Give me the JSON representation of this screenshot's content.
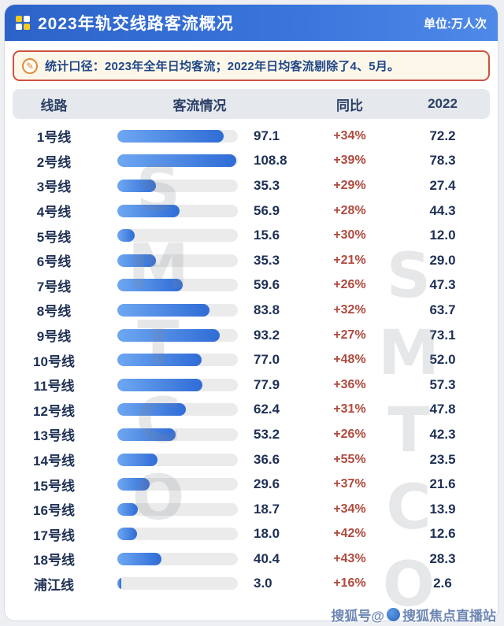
{
  "header": {
    "title": "2023年轨交线路客流概况",
    "unit": "单位:万人次"
  },
  "note": {
    "text": "统计口径：2023年全年日均客流；2022年日均客流剔除了4、5月。"
  },
  "table": {
    "columns": [
      "线路",
      "客流情况",
      "同比",
      "2022"
    ]
  },
  "chart_data": {
    "type": "bar",
    "title": "2023年轨交线路客流概况",
    "unit": "万人次",
    "categories": [
      "1号线",
      "2号线",
      "3号线",
      "4号线",
      "5号线",
      "6号线",
      "7号线",
      "8号线",
      "9号线",
      "10号线",
      "11号线",
      "12号线",
      "13号线",
      "14号线",
      "15号线",
      "16号线",
      "17号线",
      "18号线",
      "浦江线"
    ],
    "series": [
      {
        "name": "2023年日均客流",
        "values": [
          97.1,
          108.8,
          35.3,
          56.9,
          15.6,
          35.3,
          59.6,
          83.8,
          93.2,
          77.0,
          77.9,
          62.4,
          53.2,
          36.6,
          29.6,
          18.7,
          18.0,
          40.4,
          3.0
        ]
      },
      {
        "name": "同比",
        "values": [
          "+34%",
          "+39%",
          "+29%",
          "+28%",
          "+30%",
          "+21%",
          "+26%",
          "+32%",
          "+27%",
          "+48%",
          "+36%",
          "+31%",
          "+26%",
          "+55%",
          "+37%",
          "+34%",
          "+42%",
          "+43%",
          "+16%"
        ]
      },
      {
        "name": "2022",
        "values": [
          72.2,
          78.3,
          27.4,
          44.3,
          12.0,
          29.0,
          47.3,
          63.7,
          73.1,
          52.0,
          57.3,
          47.8,
          42.3,
          23.5,
          21.6,
          13.9,
          12.6,
          28.3,
          2.6
        ]
      }
    ],
    "xlim": [
      0,
      110
    ],
    "legend_position": "none",
    "grid": false
  },
  "watermarks": {
    "brand": "SMTCO",
    "footer_prefix": "搜狐号@",
    "footer_suffix": "搜狐焦点直播站"
  }
}
